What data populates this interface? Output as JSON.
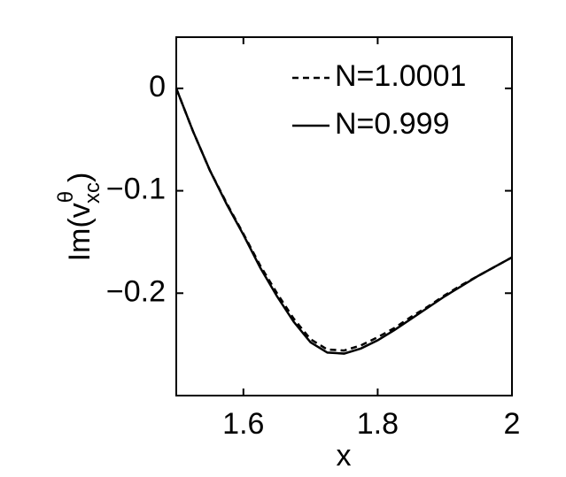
{
  "chart_data": {
    "type": "line",
    "xlabel": "x",
    "ylabel": {
      "base": "Im(v",
      "sup": "θ",
      "sub": "xc",
      "close": ")"
    },
    "x": [
      1.5,
      1.525,
      1.55,
      1.575,
      1.6,
      1.625,
      1.65,
      1.675,
      1.7,
      1.725,
      1.75,
      1.775,
      1.8,
      1.825,
      1.85,
      1.875,
      1.9,
      1.925,
      1.95,
      1.975,
      2.0
    ],
    "series": [
      {
        "name": "N=1.0001",
        "color": "#000000",
        "linestyle": "dashed",
        "values": [
          0,
          -0.042,
          -0.08,
          -0.112,
          -0.142,
          -0.173,
          -0.2,
          -0.225,
          -0.245,
          -0.255,
          -0.256,
          -0.251,
          -0.243,
          -0.234,
          -0.223,
          -0.213,
          -0.202,
          -0.192,
          -0.183,
          -0.174,
          -0.165
        ]
      },
      {
        "name": "N=0.999",
        "color": "#000000",
        "linestyle": "solid",
        "values": [
          0,
          -0.042,
          -0.08,
          -0.113,
          -0.143,
          -0.175,
          -0.203,
          -0.228,
          -0.248,
          -0.258,
          -0.259,
          -0.254,
          -0.246,
          -0.236,
          -0.225,
          -0.214,
          -0.203,
          -0.193,
          -0.183,
          -0.174,
          -0.165
        ]
      }
    ],
    "xlim": [
      1.5,
      2.0
    ],
    "xticks": [
      1.6,
      1.8,
      2
    ],
    "ylim": [
      -0.3,
      0.05
    ],
    "yticks": [
      0,
      {
        "value": -0.1,
        "label": "−0.1"
      },
      {
        "value": -0.2,
        "label": "−0.2"
      }
    ],
    "legend": "upper right"
  }
}
